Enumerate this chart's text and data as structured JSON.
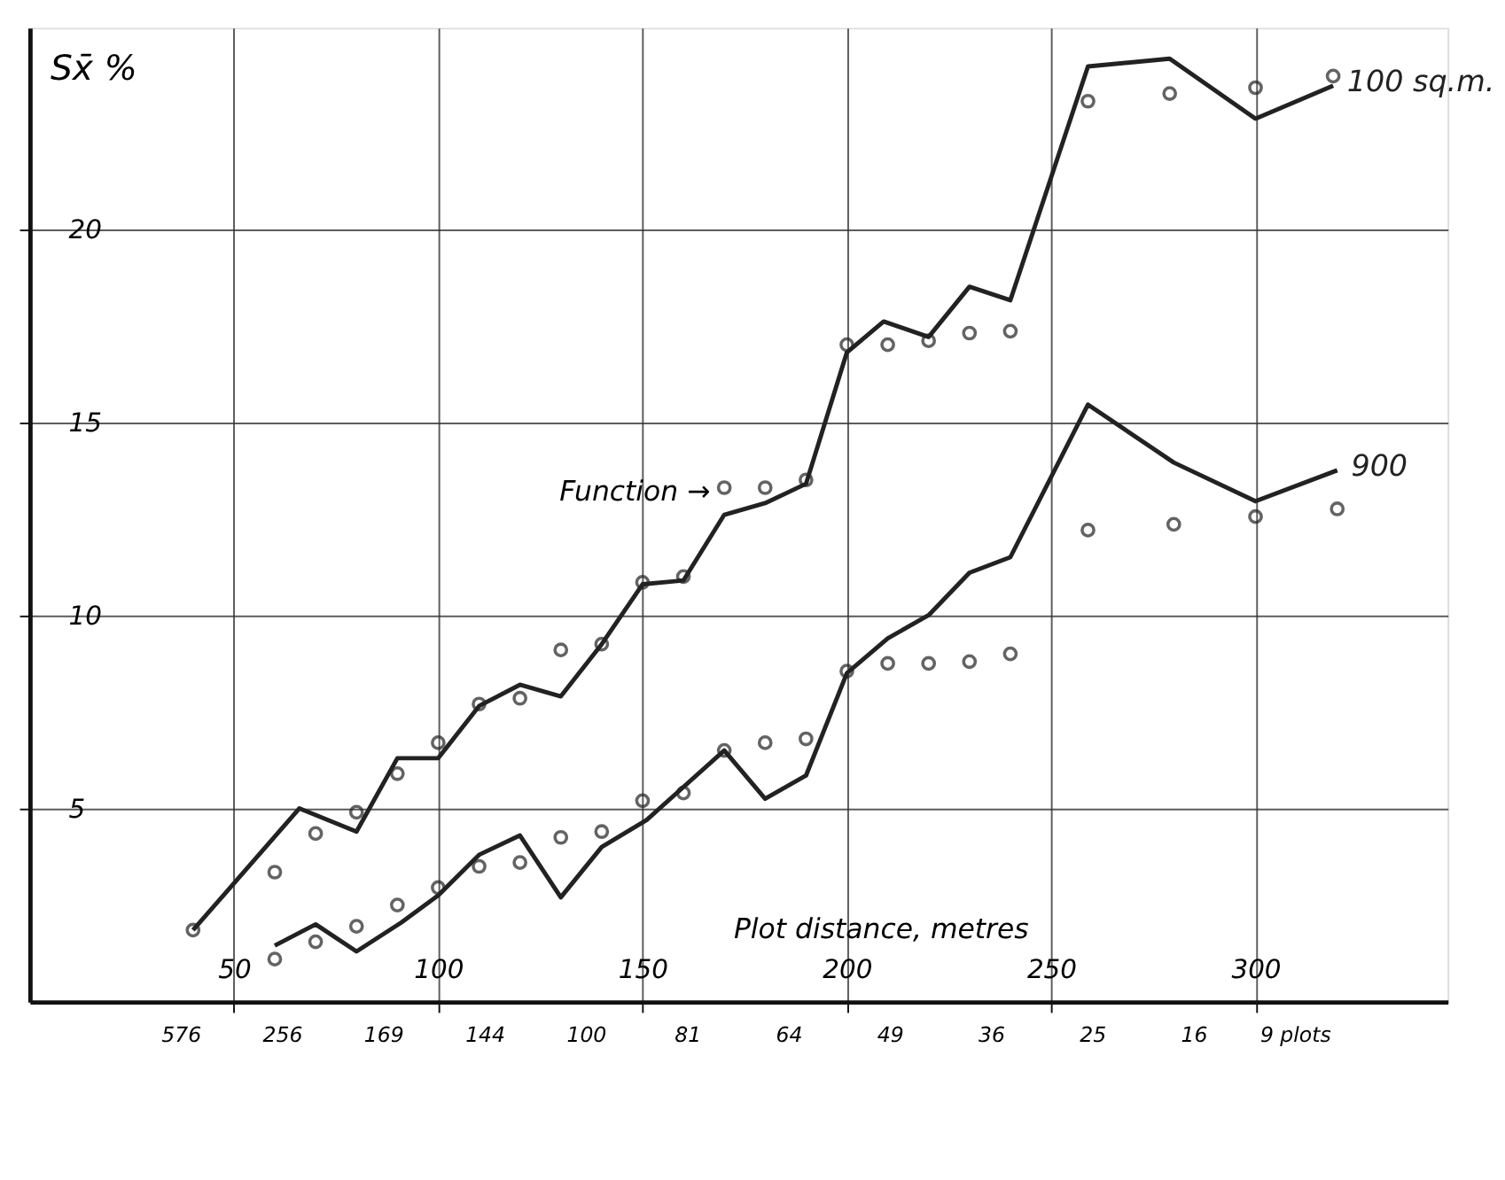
{
  "chart_data": {
    "type": "line",
    "ylabel": "Sx̄ %",
    "xlabel": "Plot distance, metres",
    "xlim": [
      0,
      347
    ],
    "ylim": [
      0,
      25.2
    ],
    "xticks": [
      50,
      100,
      150,
      200,
      250,
      300
    ],
    "yticks": [
      5,
      10,
      15,
      20
    ],
    "grid": true,
    "series": [
      {
        "name": "100 sq.m.",
        "color": "#222222",
        "marker": "none",
        "x": [
          40,
          66,
          80,
          90,
          100,
          110,
          120,
          130,
          140,
          150,
          160,
          170,
          180,
          190,
          200,
          209,
          220,
          230,
          240,
          259,
          279,
          300,
          319
        ],
        "values": [
          1.85,
          5.0,
          4.4,
          6.3,
          6.3,
          7.65,
          8.2,
          7.9,
          9.25,
          10.8,
          10.9,
          12.6,
          12.9,
          13.4,
          16.8,
          17.6,
          17.2,
          18.5,
          18.15,
          24.2,
          24.4,
          22.85,
          23.7
        ]
      },
      {
        "type": "scatter",
        "color": "#222222",
        "marker": "circle",
        "x": [
          40,
          60,
          70,
          80,
          90,
          100,
          110,
          120,
          130,
          140,
          150,
          160,
          170,
          180,
          190,
          200,
          210,
          220,
          230,
          240,
          259,
          279,
          300,
          319
        ],
        "values": [
          1.85,
          3.35,
          4.35,
          4.9,
          5.9,
          6.7,
          7.7,
          7.85,
          9.1,
          9.25,
          10.85,
          11.0,
          13.3,
          13.3,
          13.5,
          17.0,
          17.0,
          17.1,
          17.3,
          17.35,
          23.3,
          23.5,
          23.65,
          23.95
        ]
      },
      {
        "name": "900",
        "color": "#222222",
        "marker": "none",
        "x": [
          60,
          70,
          80,
          91,
          100,
          110,
          120,
          130,
          140,
          151,
          170,
          180,
          190,
          200,
          210,
          220,
          230,
          240,
          259,
          280,
          300,
          320
        ],
        "values": [
          1.45,
          2.0,
          1.3,
          2.05,
          2.75,
          3.8,
          4.3,
          2.7,
          4.0,
          4.7,
          6.5,
          5.25,
          5.85,
          8.5,
          9.4,
          10.0,
          11.1,
          11.5,
          15.45,
          13.95,
          12.95,
          13.75
        ]
      },
      {
        "type": "scatter",
        "color": "#222222",
        "marker": "circle",
        "x": [
          60,
          70,
          80,
          90,
          100,
          110,
          120,
          130,
          140,
          150,
          160,
          170,
          180,
          190,
          200,
          210,
          220,
          230,
          240,
          259,
          280,
          300,
          320
        ],
        "values": [
          1.1,
          1.55,
          1.95,
          2.5,
          2.95,
          3.5,
          3.6,
          4.25,
          4.4,
          5.2,
          5.4,
          6.5,
          6.7,
          6.8,
          8.55,
          8.75,
          8.75,
          8.8,
          9.0,
          12.2,
          12.35,
          12.55,
          12.75
        ]
      }
    ],
    "annotations": [
      {
        "text": "Function →",
        "x": 170,
        "y": 13.2
      },
      "576",
      "256",
      "169",
      "144",
      "100",
      "81",
      "64",
      "49",
      "36",
      "25",
      "16",
      "9 plots"
    ]
  }
}
